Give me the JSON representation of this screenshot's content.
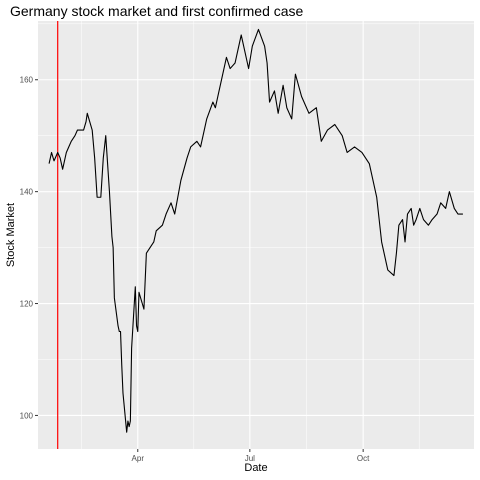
{
  "chart_data": {
    "type": "line",
    "title": "Germany stock market and first confirmed case",
    "xlabel": "Date",
    "ylabel": "Stock Market",
    "x_ticks": [
      {
        "label": "Apr",
        "date": "2020-04-01"
      },
      {
        "label": "Jul",
        "date": "2020-07-01"
      },
      {
        "label": "Oct",
        "date": "2020-10-01"
      }
    ],
    "y_ticks": [
      100,
      120,
      140,
      160
    ],
    "xlim": [
      "2020-01-11",
      "2020-12-30"
    ],
    "ylim": [
      94,
      170.5
    ],
    "grid": true,
    "legend": "none",
    "colors": {
      "panel": "#ebebeb",
      "grid_major": "#ffffff",
      "line": "#000000",
      "vline": "#ff0000"
    },
    "vline": {
      "date": "2020-01-27"
    },
    "series": [
      {
        "x": [
          "2020-01-20",
          "2020-01-22",
          "2020-01-24",
          "2020-01-27",
          "2020-01-29",
          "2020-01-31",
          "2020-02-03",
          "2020-02-05",
          "2020-02-07",
          "2020-02-10",
          "2020-02-12",
          "2020-02-14",
          "2020-02-17",
          "2020-02-19",
          "2020-02-20",
          "2020-02-24",
          "2020-02-26",
          "2020-02-28",
          "2020-03-02",
          "2020-03-04",
          "2020-03-06",
          "2020-03-09",
          "2020-03-11",
          "2020-03-12",
          "2020-03-13",
          "2020-03-16",
          "2020-03-17",
          "2020-03-18",
          "2020-03-19",
          "2020-03-20",
          "2020-03-23",
          "2020-03-24",
          "2020-03-25",
          "2020-03-26",
          "2020-03-27",
          "2020-03-30",
          "2020-03-31",
          "2020-04-01",
          "2020-04-02",
          "2020-04-06",
          "2020-04-08",
          "2020-04-14",
          "2020-04-16",
          "2020-04-21",
          "2020-04-24",
          "2020-04-28",
          "2020-05-01",
          "2020-05-06",
          "2020-05-11",
          "2020-05-14",
          "2020-05-19",
          "2020-05-22",
          "2020-05-27",
          "2020-06-01",
          "2020-06-03",
          "2020-06-05",
          "2020-06-08",
          "2020-06-12",
          "2020-06-15",
          "2020-06-19",
          "2020-06-24",
          "2020-06-30",
          "2020-07-03",
          "2020-07-08",
          "2020-07-13",
          "2020-07-15",
          "2020-07-17",
          "2020-07-21",
          "2020-07-24",
          "2020-07-28",
          "2020-07-31",
          "2020-08-04",
          "2020-08-07",
          "2020-08-12",
          "2020-08-18",
          "2020-08-24",
          "2020-08-28",
          "2020-09-02",
          "2020-09-08",
          "2020-09-14",
          "2020-09-18",
          "2020-09-24",
          "2020-09-30",
          "2020-10-06",
          "2020-10-12",
          "2020-10-16",
          "2020-10-21",
          "2020-10-26",
          "2020-10-28",
          "2020-10-30",
          "2020-11-02",
          "2020-11-04",
          "2020-11-06",
          "2020-11-09",
          "2020-11-11",
          "2020-11-13",
          "2020-11-16",
          "2020-11-19",
          "2020-11-23",
          "2020-11-26",
          "2020-11-30",
          "2020-12-03",
          "2020-12-07",
          "2020-12-10",
          "2020-12-14",
          "2020-12-17",
          "2020-12-21"
        ],
        "values": [
          145,
          147,
          145.5,
          147,
          146,
          144,
          147,
          148,
          149,
          150,
          151,
          151,
          151,
          152.5,
          154,
          151,
          146,
          139,
          139,
          146,
          150,
          140,
          132,
          130,
          121,
          116,
          115,
          115,
          109,
          104,
          97,
          99,
          98,
          99,
          112,
          123,
          116,
          115,
          122,
          119,
          129,
          131,
          133,
          134,
          136,
          138,
          136,
          142,
          146,
          148,
          149,
          148,
          153,
          156,
          155,
          157,
          160,
          164,
          162,
          163,
          168,
          162,
          166,
          169,
          166,
          163,
          156,
          158,
          154,
          159,
          155,
          153,
          161,
          157,
          154,
          155,
          149,
          151,
          152,
          150,
          147,
          148,
          147,
          145,
          139,
          131,
          126,
          125,
          129,
          134,
          135,
          131,
          136,
          137,
          134,
          135,
          137,
          135,
          134,
          135,
          136,
          138,
          137,
          140,
          137,
          136,
          136
        ]
      }
    ]
  }
}
